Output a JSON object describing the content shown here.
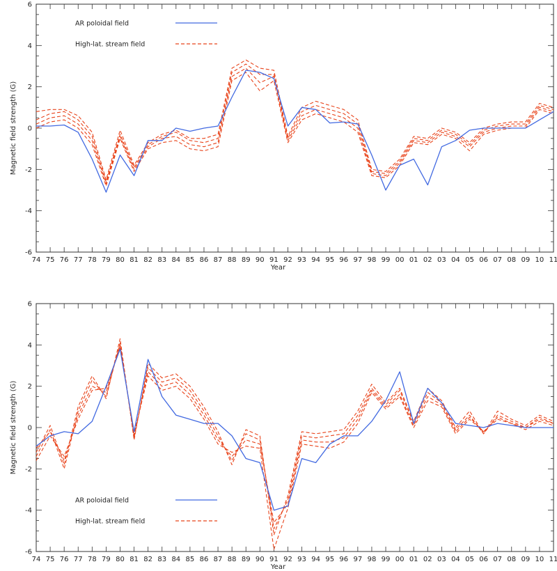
{
  "chart_data": [
    {
      "type": "line",
      "panel": "top",
      "xlabel": "Year",
      "ylabel": "Magnetic field strength (G)",
      "ylim": [
        -6,
        6
      ],
      "yticks": [
        -6,
        -4,
        -2,
        0,
        2,
        4,
        6
      ],
      "x_tick_labels": [
        "74",
        "75",
        "76",
        "77",
        "78",
        "79",
        "80",
        "81",
        "82",
        "83",
        "84",
        "85",
        "86",
        "87",
        "88",
        "89",
        "90",
        "91",
        "92",
        "93",
        "94",
        "95",
        "96",
        "97",
        "98",
        "99",
        "00",
        "01",
        "02",
        "03",
        "04",
        "05",
        "06",
        "07",
        "08",
        "09",
        "10",
        "11"
      ],
      "x": [
        1974,
        1975,
        1976,
        1977,
        1978,
        1979,
        1980,
        1981,
        1982,
        1983,
        1984,
        1985,
        1986,
        1987,
        1988,
        1989,
        1990,
        1991,
        1992,
        1993,
        1994,
        1995,
        1996,
        1997,
        1998,
        1999,
        2000,
        2001,
        2002,
        2003,
        2004,
        2005,
        2006,
        2007,
        2008,
        2009,
        2010,
        2011
      ],
      "legend_position": "top-left",
      "grid": false,
      "series": [
        {
          "name": "AR poloidal field",
          "style": "solid",
          "color": "#4169e1",
          "values": [
            0.1,
            0.1,
            0.15,
            -0.2,
            -1.5,
            -3.1,
            -1.3,
            -2.3,
            -0.6,
            -0.6,
            0.0,
            -0.15,
            0.0,
            0.1,
            1.5,
            2.8,
            2.7,
            2.4,
            0.1,
            1.0,
            0.9,
            0.25,
            0.3,
            0.2,
            -1.3,
            -3.0,
            -1.8,
            -1.5,
            -2.75,
            -0.9,
            -0.6,
            -0.1,
            0.0,
            0.0,
            0.0,
            0.0,
            0.4,
            0.8
          ]
        },
        {
          "name": "High-lat. stream field",
          "style": "dashed",
          "color": "#e8431a",
          "values": [
            0.8,
            0.9,
            0.9,
            0.6,
            -0.2,
            -2.5,
            -0.1,
            -1.8,
            -0.7,
            -0.3,
            -0.1,
            -0.5,
            -0.5,
            -0.3,
            2.9,
            3.3,
            2.9,
            2.8,
            -0.4,
            1.0,
            1.3,
            1.1,
            0.9,
            0.4,
            -2.0,
            -2.1,
            -1.5,
            -0.4,
            -0.5,
            0.0,
            -0.2,
            -0.7,
            0.0,
            0.2,
            0.3,
            0.3,
            1.2,
            1.0
          ]
        },
        {
          "name": "",
          "style": "dashed",
          "color": "#e8431a",
          "values": [
            0.4,
            0.7,
            0.8,
            0.4,
            -0.4,
            -2.6,
            -0.3,
            -1.9,
            -0.8,
            -0.4,
            -0.2,
            -0.6,
            -0.7,
            -0.5,
            2.7,
            3.1,
            2.6,
            2.6,
            -0.5,
            0.8,
            1.1,
            0.9,
            0.7,
            0.2,
            -2.1,
            -2.2,
            -1.6,
            -0.5,
            -0.6,
            -0.1,
            -0.3,
            -0.8,
            -0.1,
            0.1,
            0.2,
            0.2,
            1.1,
            0.9
          ]
        },
        {
          "name": "",
          "style": "dashed",
          "color": "#e8431a",
          "values": [
            0.2,
            0.5,
            0.6,
            0.2,
            -0.6,
            -2.7,
            -0.4,
            -2.0,
            -0.9,
            -0.5,
            -0.4,
            -0.8,
            -0.9,
            -0.7,
            2.5,
            2.9,
            2.2,
            2.5,
            -0.6,
            0.6,
            0.9,
            0.7,
            0.5,
            0.0,
            -2.2,
            -2.3,
            -1.7,
            -0.6,
            -0.7,
            -0.2,
            -0.4,
            -0.9,
            -0.2,
            0.0,
            0.1,
            0.1,
            1.0,
            0.8
          ]
        },
        {
          "name": "",
          "style": "dashed",
          "color": "#e8431a",
          "values": [
            0.0,
            0.3,
            0.4,
            0.0,
            -0.8,
            -2.8,
            -0.5,
            -2.1,
            -1.0,
            -0.7,
            -0.6,
            -1.0,
            -1.1,
            -0.9,
            2.3,
            2.7,
            1.8,
            2.3,
            -0.7,
            0.4,
            0.7,
            0.5,
            0.3,
            -0.2,
            -2.3,
            -2.4,
            -1.8,
            -0.7,
            -0.8,
            -0.3,
            -0.5,
            -1.1,
            -0.3,
            -0.1,
            0.0,
            0.0,
            0.9,
            0.7
          ]
        }
      ]
    },
    {
      "type": "line",
      "panel": "bottom",
      "xlabel": "Year",
      "ylabel": "Magnetic field strength (G)",
      "ylim": [
        -6,
        6
      ],
      "yticks": [
        -6,
        -4,
        -2,
        0,
        2,
        4,
        6
      ],
      "x_tick_labels": [
        "74",
        "75",
        "76",
        "77",
        "78",
        "79",
        "80",
        "81",
        "82",
        "83",
        "84",
        "85",
        "86",
        "87",
        "88",
        "89",
        "90",
        "91",
        "92",
        "93",
        "94",
        "95",
        "96",
        "97",
        "98",
        "99",
        "00",
        "01",
        "02",
        "03",
        "04",
        "05",
        "06",
        "07",
        "08",
        "09",
        "10",
        "11"
      ],
      "x": [
        1974,
        1975,
        1976,
        1977,
        1978,
        1979,
        1980,
        1981,
        1982,
        1983,
        1984,
        1985,
        1986,
        1987,
        1988,
        1989,
        1990,
        1991,
        1992,
        1993,
        1994,
        1995,
        1996,
        1997,
        1998,
        1999,
        2000,
        2001,
        2002,
        2003,
        2004,
        2005,
        2006,
        2007,
        2008,
        2009,
        2010,
        2011
      ],
      "legend_position": "bottom-left",
      "grid": false,
      "series": [
        {
          "name": "AR poloidal field",
          "style": "solid",
          "color": "#4169e1",
          "values": [
            -0.9,
            -0.4,
            -0.2,
            -0.3,
            0.3,
            2.0,
            3.8,
            -0.2,
            3.3,
            1.5,
            0.6,
            0.4,
            0.2,
            0.2,
            -0.4,
            -1.5,
            -1.7,
            -4.0,
            -3.8,
            -1.5,
            -1.7,
            -0.8,
            -0.4,
            -0.4,
            0.3,
            1.3,
            2.7,
            0.2,
            1.9,
            1.2,
            0.2,
            0.1,
            0.0,
            0.2,
            0.1,
            0.0,
            0.0,
            0.0
          ]
        },
        {
          "name": "High-lat. stream field",
          "style": "dashed",
          "color": "#e8431a",
          "values": [
            -1.2,
            0.1,
            -1.8,
            1.0,
            2.5,
            1.4,
            4.3,
            -0.6,
            3.1,
            2.4,
            2.6,
            2.0,
            1.0,
            -0.2,
            -1.8,
            -0.1,
            -0.4,
            -5.2,
            -3.3,
            -0.2,
            -0.3,
            -0.2,
            -0.1,
            0.8,
            2.1,
            1.2,
            1.9,
            0.3,
            1.9,
            1.3,
            0.0,
            0.8,
            -0.3,
            0.8,
            0.4,
            0.1,
            0.6,
            0.3
          ]
        },
        {
          "name": "",
          "style": "dashed",
          "color": "#e8431a",
          "values": [
            -1.4,
            -0.1,
            -2.0,
            0.8,
            2.3,
            1.5,
            4.1,
            -0.5,
            2.9,
            2.2,
            2.4,
            1.8,
            0.8,
            -0.4,
            -1.6,
            -0.3,
            -0.6,
            -4.9,
            -3.5,
            -0.4,
            -0.5,
            -0.4,
            -0.3,
            0.6,
            1.9,
            1.1,
            1.8,
            0.2,
            1.7,
            1.2,
            -0.1,
            0.6,
            -0.3,
            0.6,
            0.3,
            0.0,
            0.5,
            0.2
          ]
        },
        {
          "name": "",
          "style": "dashed",
          "color": "#e8431a",
          "values": [
            -1.0,
            -0.2,
            -1.6,
            0.6,
            2.0,
            1.7,
            4.0,
            -0.4,
            2.7,
            2.0,
            2.2,
            1.6,
            0.6,
            -0.6,
            -1.4,
            -0.6,
            -0.8,
            -4.6,
            -3.7,
            -0.6,
            -0.7,
            -0.7,
            -0.5,
            0.4,
            1.8,
            1.0,
            1.6,
            0.1,
            1.5,
            1.1,
            -0.2,
            0.5,
            -0.2,
            0.5,
            0.2,
            0.0,
            0.4,
            0.2
          ]
        },
        {
          "name": "",
          "style": "dashed",
          "color": "#e8431a",
          "values": [
            -1.6,
            -0.4,
            -1.4,
            0.4,
            1.8,
            1.9,
            3.9,
            -0.3,
            2.5,
            1.8,
            2.0,
            1.4,
            0.4,
            -0.8,
            -1.2,
            -0.9,
            -1.0,
            -5.9,
            -3.9,
            -0.8,
            -0.9,
            -1.0,
            -0.7,
            0.2,
            1.7,
            0.9,
            1.5,
            0.0,
            1.3,
            1.0,
            -0.3,
            0.4,
            -0.2,
            0.4,
            0.2,
            -0.1,
            0.3,
            0.1
          ]
        }
      ]
    }
  ]
}
